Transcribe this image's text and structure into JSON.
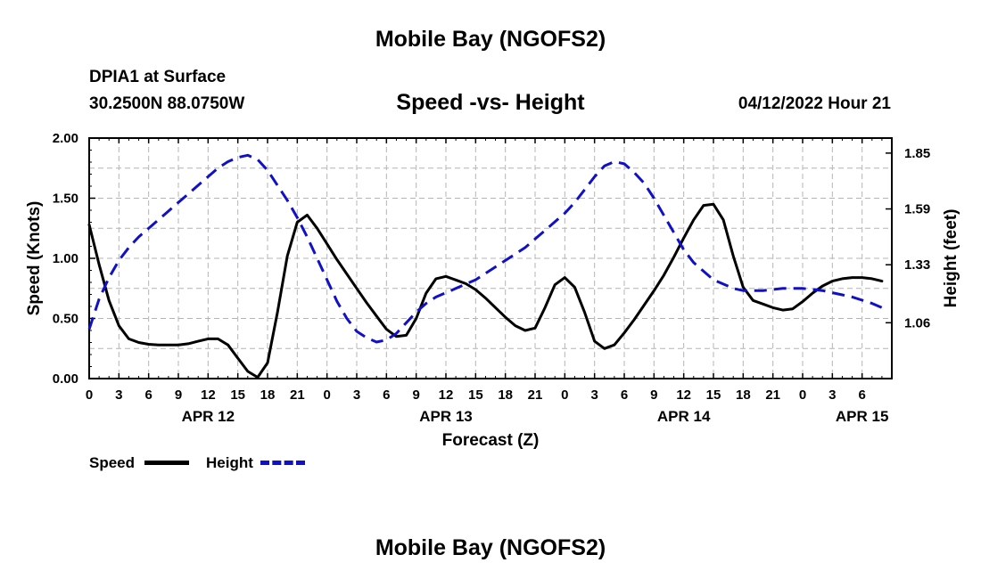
{
  "header": {
    "title": "Mobile Bay (NGOFS2)",
    "station": "DPIA1 at Surface",
    "coords": "30.2500N  88.0750W",
    "chart_title": "Speed -vs- Height",
    "datetime": "04/12/2022 Hour 21"
  },
  "legend": {
    "speed_label": "Speed",
    "height_label": "Height"
  },
  "footer": {
    "title": "Mobile Bay (NGOFS2)"
  },
  "colors": {
    "speed": "#000000",
    "height": "#1010c8",
    "grid": "#b4b4b4"
  },
  "chart_data": {
    "type": "line",
    "title": "Speed -vs- Height",
    "xlabel": "Forecast (Z)",
    "ylabel_left": "Speed (Knots)",
    "ylabel_right": "Height (feet)",
    "x_range_hours": [
      0,
      81
    ],
    "x_ticks": [
      {
        "h": 0,
        "label": "0"
      },
      {
        "h": 3,
        "label": "3"
      },
      {
        "h": 6,
        "label": "6"
      },
      {
        "h": 9,
        "label": "9"
      },
      {
        "h": 12,
        "label": "12"
      },
      {
        "h": 15,
        "label": "15"
      },
      {
        "h": 18,
        "label": "18"
      },
      {
        "h": 21,
        "label": "21"
      },
      {
        "h": 24,
        "label": "0"
      },
      {
        "h": 27,
        "label": "3"
      },
      {
        "h": 30,
        "label": "6"
      },
      {
        "h": 33,
        "label": "9"
      },
      {
        "h": 36,
        "label": "12"
      },
      {
        "h": 39,
        "label": "15"
      },
      {
        "h": 42,
        "label": "18"
      },
      {
        "h": 45,
        "label": "21"
      },
      {
        "h": 48,
        "label": "0"
      },
      {
        "h": 51,
        "label": "3"
      },
      {
        "h": 54,
        "label": "6"
      },
      {
        "h": 57,
        "label": "9"
      },
      {
        "h": 60,
        "label": "12"
      },
      {
        "h": 63,
        "label": "15"
      },
      {
        "h": 66,
        "label": "18"
      },
      {
        "h": 69,
        "label": "21"
      },
      {
        "h": 72,
        "label": "0"
      },
      {
        "h": 75,
        "label": "3"
      },
      {
        "h": 78,
        "label": "6"
      }
    ],
    "date_labels": [
      {
        "h": 12,
        "label": "APR 12"
      },
      {
        "h": 36,
        "label": "APR 13"
      },
      {
        "h": 60,
        "label": "APR 14"
      },
      {
        "h": 78,
        "label": "APR 15"
      }
    ],
    "y_left": {
      "min": 0,
      "max": 2.0,
      "ticks": [
        "0.00",
        "0.50",
        "1.00",
        "1.50",
        "2.00"
      ]
    },
    "y_right": {
      "min": 0.8,
      "max": 1.92,
      "ticks": [
        "1.06",
        "1.33",
        "1.59",
        "1.85"
      ]
    },
    "grid": true,
    "series": [
      {
        "name": "Speed",
        "axis": "left",
        "style": "solid",
        "points": [
          [
            0,
            1.28
          ],
          [
            1,
            0.95
          ],
          [
            2,
            0.65
          ],
          [
            3,
            0.44
          ],
          [
            4,
            0.33
          ],
          [
            5,
            0.3
          ],
          [
            6,
            0.285
          ],
          [
            7,
            0.28
          ],
          [
            8,
            0.28
          ],
          [
            9,
            0.28
          ],
          [
            10,
            0.29
          ],
          [
            11,
            0.31
          ],
          [
            12,
            0.33
          ],
          [
            13,
            0.33
          ],
          [
            14,
            0.28
          ],
          [
            15,
            0.17
          ],
          [
            16,
            0.06
          ],
          [
            17,
            0.01
          ],
          [
            18,
            0.13
          ],
          [
            19,
            0.55
          ],
          [
            20,
            1.02
          ],
          [
            21,
            1.3
          ],
          [
            22,
            1.36
          ],
          [
            23,
            1.25
          ],
          [
            24,
            1.12
          ],
          [
            25,
            0.99
          ],
          [
            26,
            0.87
          ],
          [
            27,
            0.75
          ],
          [
            28,
            0.63
          ],
          [
            29,
            0.52
          ],
          [
            30,
            0.41
          ],
          [
            31,
            0.35
          ],
          [
            32,
            0.36
          ],
          [
            33,
            0.5
          ],
          [
            34,
            0.71
          ],
          [
            35,
            0.83
          ],
          [
            36,
            0.85
          ],
          [
            37,
            0.82
          ],
          [
            38,
            0.79
          ],
          [
            39,
            0.74
          ],
          [
            40,
            0.67
          ],
          [
            41,
            0.59
          ],
          [
            42,
            0.51
          ],
          [
            43,
            0.44
          ],
          [
            44,
            0.4
          ],
          [
            45,
            0.42
          ],
          [
            46,
            0.59
          ],
          [
            47,
            0.78
          ],
          [
            48,
            0.84
          ],
          [
            49,
            0.76
          ],
          [
            50,
            0.55
          ],
          [
            51,
            0.31
          ],
          [
            52,
            0.25
          ],
          [
            53,
            0.28
          ],
          [
            54,
            0.38
          ],
          [
            55,
            0.49
          ],
          [
            56,
            0.61
          ],
          [
            57,
            0.73
          ],
          [
            58,
            0.86
          ],
          [
            59,
            1.01
          ],
          [
            60,
            1.17
          ],
          [
            61,
            1.32
          ],
          [
            62,
            1.44
          ],
          [
            63,
            1.45
          ],
          [
            64,
            1.32
          ],
          [
            65,
            1.02
          ],
          [
            66,
            0.76
          ],
          [
            67,
            0.65
          ],
          [
            68,
            0.62
          ],
          [
            69,
            0.59
          ],
          [
            70,
            0.57
          ],
          [
            71,
            0.58
          ],
          [
            72,
            0.64
          ],
          [
            73,
            0.71
          ],
          [
            74,
            0.77
          ],
          [
            75,
            0.81
          ],
          [
            76,
            0.83
          ],
          [
            77,
            0.84
          ],
          [
            78,
            0.84
          ],
          [
            79,
            0.83
          ],
          [
            80,
            0.81
          ]
        ]
      },
      {
        "name": "Height",
        "axis": "right",
        "style": "dashed",
        "points": [
          [
            0,
            1.03
          ],
          [
            1,
            1.17
          ],
          [
            2,
            1.27
          ],
          [
            3,
            1.35
          ],
          [
            4,
            1.41
          ],
          [
            5,
            1.46
          ],
          [
            6,
            1.5
          ],
          [
            7,
            1.54
          ],
          [
            8,
            1.58
          ],
          [
            9,
            1.62
          ],
          [
            10,
            1.66
          ],
          [
            11,
            1.7
          ],
          [
            12,
            1.74
          ],
          [
            13,
            1.78
          ],
          [
            14,
            1.81
          ],
          [
            15,
            1.83
          ],
          [
            16,
            1.84
          ],
          [
            17,
            1.82
          ],
          [
            18,
            1.77
          ],
          [
            19,
            1.7
          ],
          [
            20,
            1.63
          ],
          [
            21,
            1.55
          ],
          [
            22,
            1.46
          ],
          [
            23,
            1.36
          ],
          [
            24,
            1.26
          ],
          [
            25,
            1.16
          ],
          [
            26,
            1.08
          ],
          [
            27,
            1.02
          ],
          [
            28,
            0.99
          ],
          [
            29,
            0.97
          ],
          [
            30,
            0.98
          ],
          [
            31,
            1.01
          ],
          [
            32,
            1.06
          ],
          [
            33,
            1.11
          ],
          [
            34,
            1.15
          ],
          [
            35,
            1.18
          ],
          [
            36,
            1.2
          ],
          [
            37,
            1.22
          ],
          [
            38,
            1.24
          ],
          [
            39,
            1.26
          ],
          [
            40,
            1.29
          ],
          [
            41,
            1.32
          ],
          [
            42,
            1.35
          ],
          [
            43,
            1.38
          ],
          [
            44,
            1.41
          ],
          [
            45,
            1.45
          ],
          [
            46,
            1.49
          ],
          [
            47,
            1.53
          ],
          [
            48,
            1.57
          ],
          [
            49,
            1.62
          ],
          [
            50,
            1.68
          ],
          [
            51,
            1.74
          ],
          [
            52,
            1.79
          ],
          [
            53,
            1.81
          ],
          [
            54,
            1.8
          ],
          [
            55,
            1.76
          ],
          [
            56,
            1.71
          ],
          [
            57,
            1.64
          ],
          [
            58,
            1.56
          ],
          [
            59,
            1.48
          ],
          [
            60,
            1.4
          ],
          [
            61,
            1.34
          ],
          [
            62,
            1.3
          ],
          [
            63,
            1.26
          ],
          [
            64,
            1.24
          ],
          [
            65,
            1.22
          ],
          [
            66,
            1.21
          ],
          [
            67,
            1.21
          ],
          [
            68,
            1.21
          ],
          [
            69,
            1.215
          ],
          [
            70,
            1.22
          ],
          [
            71,
            1.22
          ],
          [
            72,
            1.22
          ],
          [
            73,
            1.215
          ],
          [
            74,
            1.21
          ],
          [
            75,
            1.2
          ],
          [
            76,
            1.19
          ],
          [
            77,
            1.18
          ],
          [
            78,
            1.165
          ],
          [
            79,
            1.15
          ],
          [
            80,
            1.13
          ]
        ]
      }
    ]
  }
}
